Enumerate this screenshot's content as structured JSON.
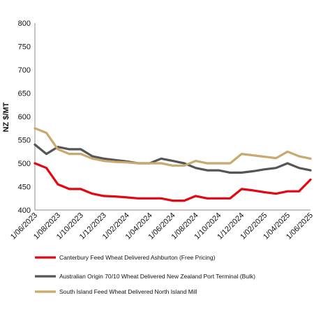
{
  "chart_data": {
    "type": "line",
    "ylabel": "NZ $/MT",
    "xlabel": "",
    "ylim": [
      400,
      800
    ],
    "y_ticks": [
      400,
      450,
      500,
      550,
      600,
      650,
      700,
      750,
      800
    ],
    "grid": false,
    "legend_position": "bottom",
    "x_tick_labels": [
      "1/06/2023",
      "1/08/2023",
      "1/10/2023",
      "1/12/2023",
      "1/02/2024",
      "1/04/2024",
      "1/06/2024",
      "1/08/2024",
      "1/10/2024",
      "1/12/2024",
      "1/02/2025",
      "1/04/2025",
      "1/06/2025"
    ],
    "x": [
      "2023-06",
      "2023-07",
      "2023-08",
      "2023-09",
      "2023-10",
      "2023-11",
      "2023-12",
      "2024-01",
      "2024-02",
      "2024-03",
      "2024-04",
      "2024-05",
      "2024-06",
      "2024-07",
      "2024-08",
      "2024-09",
      "2024-10",
      "2024-11",
      "2024-12",
      "2025-01",
      "2025-02",
      "2025-03",
      "2025-04",
      "2025-05",
      "2025-06"
    ],
    "series": [
      {
        "name": "Canterbury Feed Wheat Delivered Ashburton (Free Pricing)",
        "color": "#e30613",
        "values": [
          500,
          490,
          455,
          445,
          445,
          435,
          430,
          429,
          427,
          425,
          425,
          425,
          420,
          420,
          430,
          425,
          425,
          425,
          445,
          442,
          438,
          435,
          440,
          440,
          465
        ]
      },
      {
        "name": "Australian Origin 70/10 Wheat Delivered New Zealand Port Terminal (Bulk)",
        "color": "#555555",
        "values": [
          540,
          520,
          535,
          530,
          530,
          515,
          510,
          507,
          504,
          500,
          500,
          510,
          505,
          500,
          490,
          485,
          485,
          480,
          480,
          483,
          487,
          490,
          500,
          490,
          485
        ]
      },
      {
        "name": "South Island Feed Wheat Delivered North Island Mill",
        "color": "#c8a96e",
        "values": [
          575,
          565,
          530,
          520,
          520,
          510,
          505,
          503,
          502,
          500,
          500,
          500,
          495,
          495,
          505,
          500,
          500,
          500,
          520,
          517,
          514,
          511,
          525,
          515,
          510
        ]
      }
    ]
  }
}
